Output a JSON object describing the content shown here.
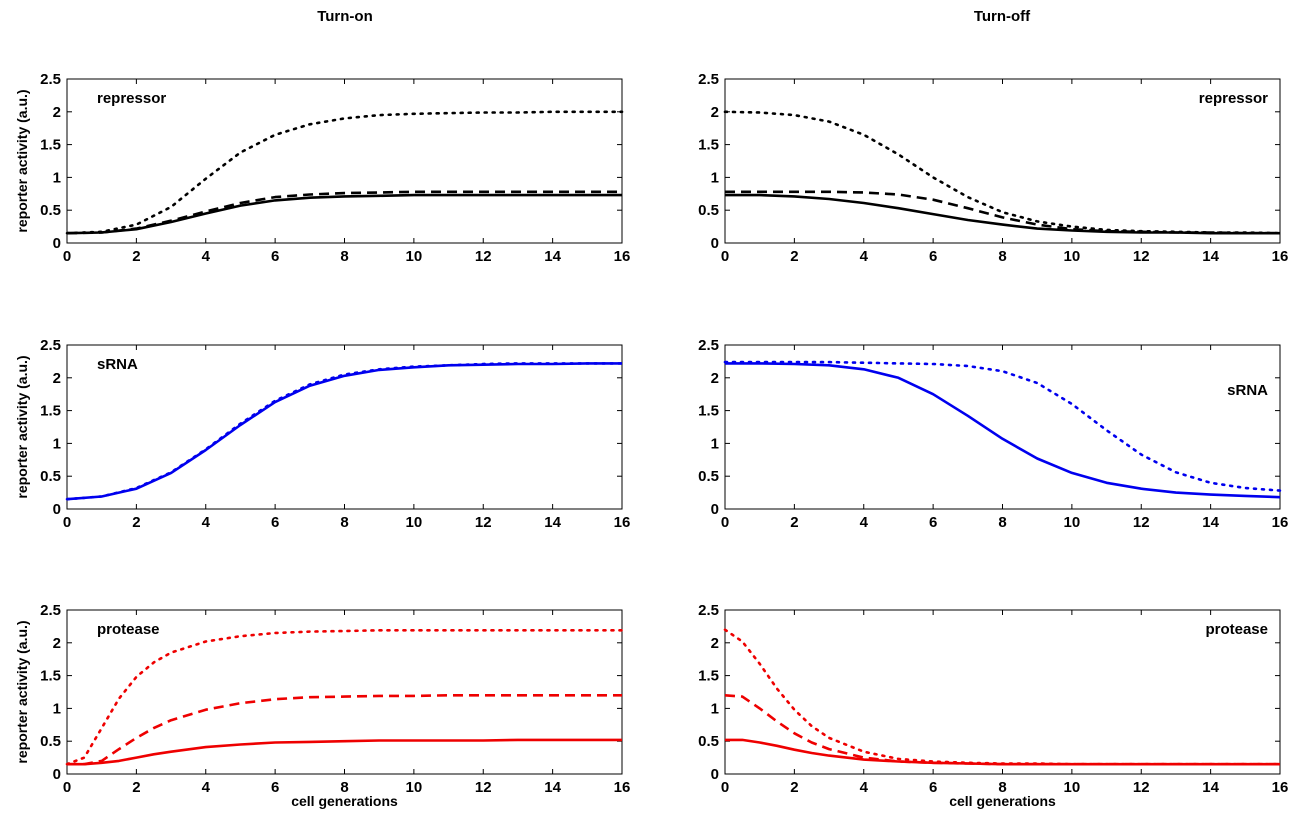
{
  "figure": {
    "col_titles": [
      "Turn-on",
      "Turn-off"
    ],
    "ylabel": "reporter activity (a.u.)",
    "xlabel": "cell generations"
  },
  "colors": {
    "repressor": "#000000",
    "sRNA": "#0000ee",
    "protease": "#ee0000"
  },
  "chart_data": [
    {
      "type": "line",
      "panel_label": "repressor",
      "column": "Turn-on",
      "xlim": [
        0,
        16
      ],
      "ylim": [
        0,
        2.5
      ],
      "xticks": [
        0,
        2,
        4,
        6,
        8,
        10,
        12,
        14,
        16
      ],
      "yticks": [
        0,
        0.5,
        1,
        1.5,
        2,
        2.5
      ],
      "ylabel": "reporter activity (a.u.)",
      "xlabel": "",
      "color": "#000000",
      "x": [
        0,
        1,
        2,
        3,
        4,
        5,
        6,
        7,
        8,
        9,
        10,
        11,
        12,
        13,
        14,
        15,
        16
      ],
      "series": [
        {
          "style": "dotted",
          "values": [
            0.15,
            0.17,
            0.28,
            0.55,
            0.98,
            1.38,
            1.65,
            1.81,
            1.9,
            1.95,
            1.97,
            1.98,
            1.99,
            1.99,
            2.0,
            2.0,
            2.0
          ]
        },
        {
          "style": "dashed",
          "values": [
            0.15,
            0.16,
            0.22,
            0.34,
            0.48,
            0.61,
            0.7,
            0.74,
            0.76,
            0.77,
            0.78,
            0.78,
            0.78,
            0.78,
            0.78,
            0.78,
            0.78
          ]
        },
        {
          "style": "solid",
          "values": [
            0.15,
            0.16,
            0.21,
            0.32,
            0.45,
            0.57,
            0.65,
            0.69,
            0.71,
            0.72,
            0.73,
            0.73,
            0.73,
            0.73,
            0.73,
            0.73,
            0.73
          ]
        }
      ]
    },
    {
      "type": "line",
      "panel_label": "repressor",
      "column": "Turn-off",
      "xlim": [
        0,
        16
      ],
      "ylim": [
        0,
        2.5
      ],
      "xticks": [
        0,
        2,
        4,
        6,
        8,
        10,
        12,
        14,
        16
      ],
      "yticks": [
        0,
        0.5,
        1,
        1.5,
        2,
        2.5
      ],
      "ylabel": "",
      "xlabel": "",
      "color": "#000000",
      "x": [
        0,
        1,
        2,
        3,
        4,
        5,
        6,
        7,
        8,
        9,
        10,
        11,
        12,
        13,
        14,
        15,
        16
      ],
      "series": [
        {
          "style": "dotted",
          "values": [
            2.0,
            1.99,
            1.95,
            1.85,
            1.65,
            1.35,
            1.0,
            0.7,
            0.47,
            0.33,
            0.25,
            0.2,
            0.18,
            0.17,
            0.16,
            0.16,
            0.15
          ]
        },
        {
          "style": "dashed",
          "values": [
            0.78,
            0.78,
            0.78,
            0.78,
            0.77,
            0.74,
            0.66,
            0.53,
            0.39,
            0.28,
            0.21,
            0.18,
            0.17,
            0.16,
            0.16,
            0.15,
            0.15
          ]
        },
        {
          "style": "solid",
          "values": [
            0.73,
            0.73,
            0.71,
            0.67,
            0.61,
            0.53,
            0.44,
            0.35,
            0.28,
            0.22,
            0.19,
            0.17,
            0.16,
            0.16,
            0.15,
            0.15,
            0.15
          ]
        }
      ]
    },
    {
      "type": "line",
      "panel_label": "sRNA",
      "column": "Turn-on",
      "xlim": [
        0,
        16
      ],
      "ylim": [
        0,
        2.5
      ],
      "xticks": [
        0,
        2,
        4,
        6,
        8,
        10,
        12,
        14,
        16
      ],
      "yticks": [
        0,
        0.5,
        1,
        1.5,
        2,
        2.5
      ],
      "ylabel": "reporter activity (a.u.)",
      "xlabel": "",
      "color": "#0000ee",
      "x": [
        0,
        1,
        2,
        3,
        4,
        5,
        6,
        7,
        8,
        9,
        10,
        11,
        12,
        13,
        14,
        15,
        16
      ],
      "series": [
        {
          "style": "dotted",
          "values": [
            0.15,
            0.19,
            0.32,
            0.56,
            0.91,
            1.3,
            1.65,
            1.9,
            2.05,
            2.13,
            2.17,
            2.19,
            2.21,
            2.22,
            2.22,
            2.22,
            2.22
          ]
        },
        {
          "style": "solid",
          "values": [
            0.15,
            0.19,
            0.31,
            0.55,
            0.9,
            1.28,
            1.63,
            1.88,
            2.03,
            2.12,
            2.16,
            2.19,
            2.2,
            2.21,
            2.21,
            2.22,
            2.22
          ]
        }
      ]
    },
    {
      "type": "line",
      "panel_label": "sRNA",
      "column": "Turn-off",
      "xlim": [
        0,
        16
      ],
      "ylim": [
        0,
        2.5
      ],
      "xticks": [
        0,
        2,
        4,
        6,
        8,
        10,
        12,
        14,
        16
      ],
      "yticks": [
        0,
        0.5,
        1,
        1.5,
        2,
        2.5
      ],
      "ylabel": "",
      "xlabel": "",
      "color": "#0000ee",
      "x": [
        0,
        1,
        2,
        3,
        4,
        5,
        6,
        7,
        8,
        9,
        10,
        11,
        12,
        13,
        14,
        15,
        16
      ],
      "series": [
        {
          "style": "dotted",
          "values": [
            2.24,
            2.24,
            2.24,
            2.24,
            2.23,
            2.22,
            2.21,
            2.18,
            2.1,
            1.92,
            1.6,
            1.2,
            0.83,
            0.56,
            0.4,
            0.32,
            0.28
          ]
        },
        {
          "style": "solid",
          "values": [
            2.22,
            2.22,
            2.21,
            2.19,
            2.13,
            2.0,
            1.75,
            1.42,
            1.07,
            0.77,
            0.55,
            0.4,
            0.31,
            0.25,
            0.22,
            0.2,
            0.18
          ]
        }
      ]
    },
    {
      "type": "line",
      "panel_label": "protease",
      "column": "Turn-on",
      "xlim": [
        0,
        16
      ],
      "ylim": [
        0,
        2.5
      ],
      "xticks": [
        0,
        2,
        4,
        6,
        8,
        10,
        12,
        14,
        16
      ],
      "yticks": [
        0,
        0.5,
        1,
        1.5,
        2,
        2.5
      ],
      "ylabel": "reporter activity (a.u.)",
      "xlabel": "cell generations",
      "color": "#ee0000",
      "x": [
        0,
        0.5,
        1,
        1.5,
        2,
        2.5,
        3,
        4,
        5,
        6,
        7,
        8,
        9,
        10,
        11,
        12,
        13,
        14,
        15,
        16
      ],
      "series": [
        {
          "style": "dotted",
          "values": [
            0.15,
            0.25,
            0.7,
            1.15,
            1.48,
            1.7,
            1.85,
            2.02,
            2.1,
            2.15,
            2.17,
            2.18,
            2.19,
            2.19,
            2.19,
            2.19,
            2.19,
            2.19,
            2.19,
            2.19
          ]
        },
        {
          "style": "dashed",
          "values": [
            0.15,
            0.15,
            0.2,
            0.38,
            0.55,
            0.7,
            0.82,
            0.98,
            1.08,
            1.14,
            1.17,
            1.18,
            1.19,
            1.19,
            1.2,
            1.2,
            1.2,
            1.2,
            1.2,
            1.2
          ]
        },
        {
          "style": "solid",
          "values": [
            0.15,
            0.15,
            0.17,
            0.2,
            0.25,
            0.3,
            0.34,
            0.41,
            0.45,
            0.48,
            0.49,
            0.5,
            0.51,
            0.51,
            0.51,
            0.51,
            0.52,
            0.52,
            0.52,
            0.52
          ]
        }
      ]
    },
    {
      "type": "line",
      "panel_label": "protease",
      "column": "Turn-off",
      "xlim": [
        0,
        16
      ],
      "ylim": [
        0,
        2.5
      ],
      "xticks": [
        0,
        2,
        4,
        6,
        8,
        10,
        12,
        14,
        16
      ],
      "yticks": [
        0,
        0.5,
        1,
        1.5,
        2,
        2.5
      ],
      "ylabel": "",
      "xlabel": "cell generations",
      "color": "#ee0000",
      "x": [
        0,
        0.5,
        1,
        1.5,
        2,
        2.5,
        3,
        4,
        5,
        6,
        7,
        8,
        9,
        10,
        11,
        12,
        13,
        14,
        15,
        16
      ],
      "series": [
        {
          "style": "dotted",
          "values": [
            2.2,
            2.02,
            1.68,
            1.3,
            0.98,
            0.73,
            0.55,
            0.34,
            0.23,
            0.19,
            0.17,
            0.16,
            0.16,
            0.15,
            0.15,
            0.15,
            0.15,
            0.15,
            0.15,
            0.15
          ]
        },
        {
          "style": "dashed",
          "values": [
            1.2,
            1.18,
            1.0,
            0.8,
            0.62,
            0.48,
            0.38,
            0.25,
            0.19,
            0.17,
            0.16,
            0.15,
            0.15,
            0.15,
            0.15,
            0.15,
            0.15,
            0.15,
            0.15,
            0.15
          ]
        },
        {
          "style": "solid",
          "values": [
            0.52,
            0.52,
            0.48,
            0.43,
            0.37,
            0.32,
            0.28,
            0.22,
            0.19,
            0.17,
            0.16,
            0.15,
            0.15,
            0.15,
            0.15,
            0.15,
            0.15,
            0.15,
            0.15,
            0.15
          ]
        }
      ]
    }
  ]
}
